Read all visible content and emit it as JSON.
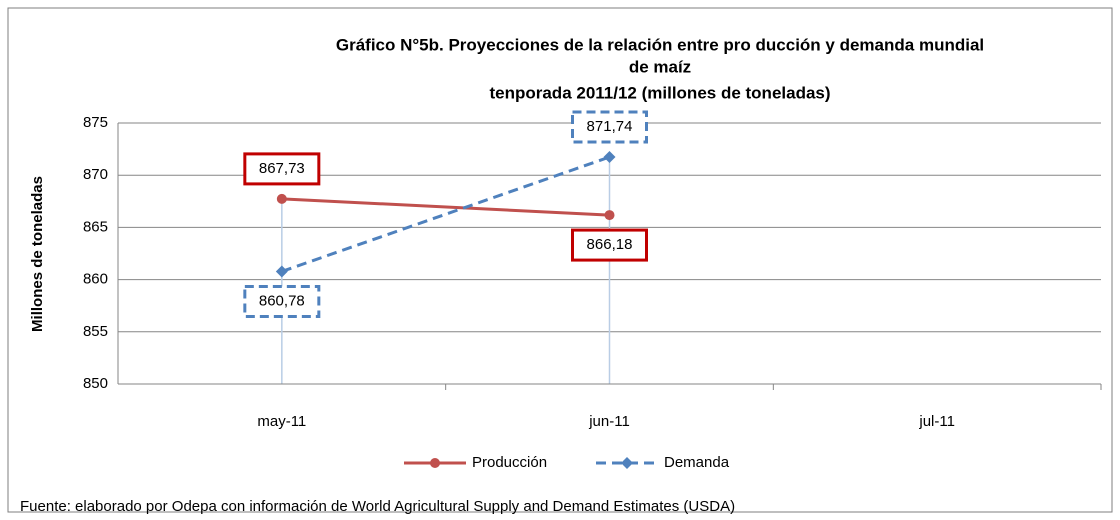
{
  "chart_data": {
    "type": "line",
    "title": [
      "Gráfico N°5b. Proyecciones de la relación entre pro ducción y demanda mundial",
      "de maíz",
      "tenporada 2011/12 (millones de toneladas)"
    ],
    "y_label": "Millones de toneladas",
    "categories": [
      "may-11",
      "jun-11",
      "jul-11"
    ],
    "series": [
      {
        "name": "Producción",
        "color": "#c0504d",
        "values": [
          867.73,
          866.18,
          null
        ],
        "value_labels": [
          "867,73",
          "866,18",
          null
        ]
      },
      {
        "name": "Demanda",
        "color": "#4f81bd",
        "values": [
          860.78,
          871.74,
          null
        ],
        "value_labels": [
          "860,78",
          "871,74",
          null
        ]
      }
    ],
    "ylim": [
      850,
      875
    ],
    "yticks": [
      850,
      855,
      860,
      865,
      870,
      875
    ],
    "grid": true,
    "legend": "bottom",
    "source": "Fuente: elaborado por Odepa con información de World Agricultural Supply and Demand Estimates  (USDA)"
  }
}
